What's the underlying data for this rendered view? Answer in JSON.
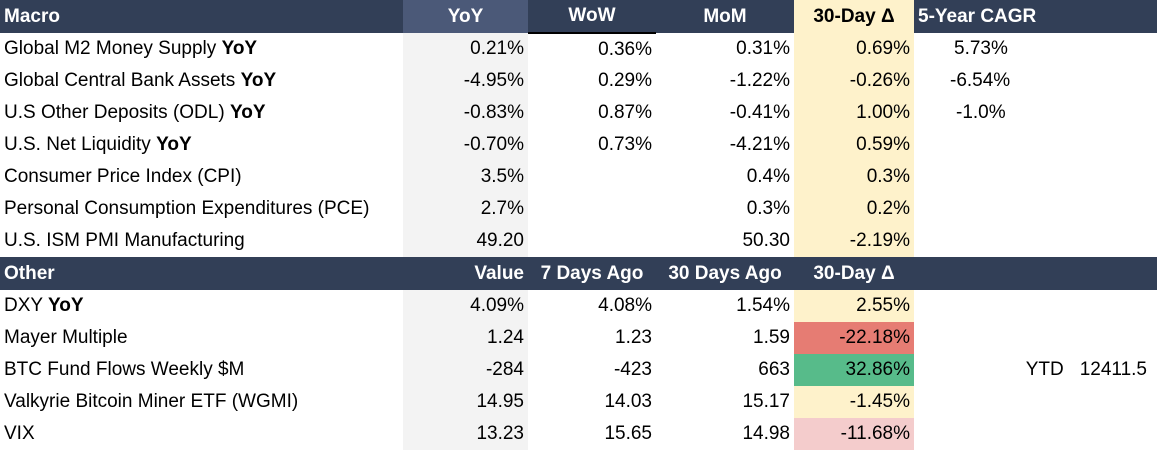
{
  "macro": {
    "headers": {
      "label": "Macro",
      "yoy": "YoY",
      "wow": "WoW",
      "mom": "MoM",
      "d30": "30-Day Δ",
      "cagr": "5-Year CAGR"
    },
    "rows": [
      {
        "name": "Global M2 Money Supply",
        "suffix": "YoY",
        "yoy": "0.21%",
        "wow": "0.36%",
        "mom": "0.31%",
        "d30": "0.69%",
        "cagr": "5.73%"
      },
      {
        "name": "Global Central Bank Assets",
        "suffix": "YoY",
        "yoy": "-4.95%",
        "wow": "0.29%",
        "mom": "-1.22%",
        "d30": "-0.26%",
        "cagr": "-6.54%"
      },
      {
        "name": "U.S Other Deposits (ODL)",
        "suffix": "YoY",
        "yoy": "-0.83%",
        "wow": "0.87%",
        "mom": "-0.41%",
        "d30": "1.00%",
        "cagr": "-1.0%"
      },
      {
        "name": "U.S. Net Liquidity",
        "suffix": "YoY",
        "yoy": "-0.70%",
        "wow": "0.73%",
        "mom": "-4.21%",
        "d30": "0.59%",
        "cagr": ""
      },
      {
        "name": "Consumer Price Index (CPI)",
        "suffix": "",
        "yoy": "3.5%",
        "wow": "",
        "mom": "0.4%",
        "d30": "0.3%",
        "cagr": ""
      },
      {
        "name": "Personal Consumption Expenditures (PCE)",
        "suffix": "",
        "yoy": "2.7%",
        "wow": "",
        "mom": "0.3%",
        "d30": "0.2%",
        "cagr": ""
      },
      {
        "name": "U.S. ISM PMI Manufacturing",
        "suffix": "",
        "yoy": "49.20",
        "wow": "",
        "mom": "50.30",
        "d30": "-2.19%",
        "cagr": ""
      }
    ]
  },
  "other": {
    "headers": {
      "label": "Other",
      "value": "Value",
      "d7": "7 Days Ago",
      "d30ago": "30 Days Ago",
      "d30": "30-Day Δ"
    },
    "rows": [
      {
        "name": "DXY",
        "suffix": "YoY",
        "value": "4.09%",
        "d7": "4.08%",
        "d30ago": "1.54%",
        "d30": "2.55%"
      },
      {
        "name": "Mayer Multiple",
        "suffix": "",
        "value": "1.24",
        "d7": "1.23",
        "d30ago": "1.59",
        "d30": "-22.18%"
      },
      {
        "name": "BTC Fund Flows Weekly $M",
        "suffix": "",
        "value": "-284",
        "d7": "-423",
        "d30ago": "663",
        "d30": "32.86%"
      },
      {
        "name": "Valkyrie Bitcoin Miner ETF (WGMI)",
        "suffix": "",
        "value": "14.95",
        "d7": "14.03",
        "d30ago": "15.17",
        "d30": "-1.45%"
      },
      {
        "name": "VIX",
        "suffix": "",
        "value": "13.23",
        "d7": "15.65",
        "d30ago": "14.98",
        "d30": "-11.68%"
      }
    ],
    "ytd": {
      "label": "YTD",
      "value": "12411.5"
    }
  },
  "colors": {
    "header_bg": "#323f57",
    "yoy_header_bg": "#4b5978",
    "highlight_yellow": "#fef2cb",
    "negative_red": "#e67c73",
    "positive_green": "#57bb8a",
    "light_red": "#f4cccc"
  }
}
